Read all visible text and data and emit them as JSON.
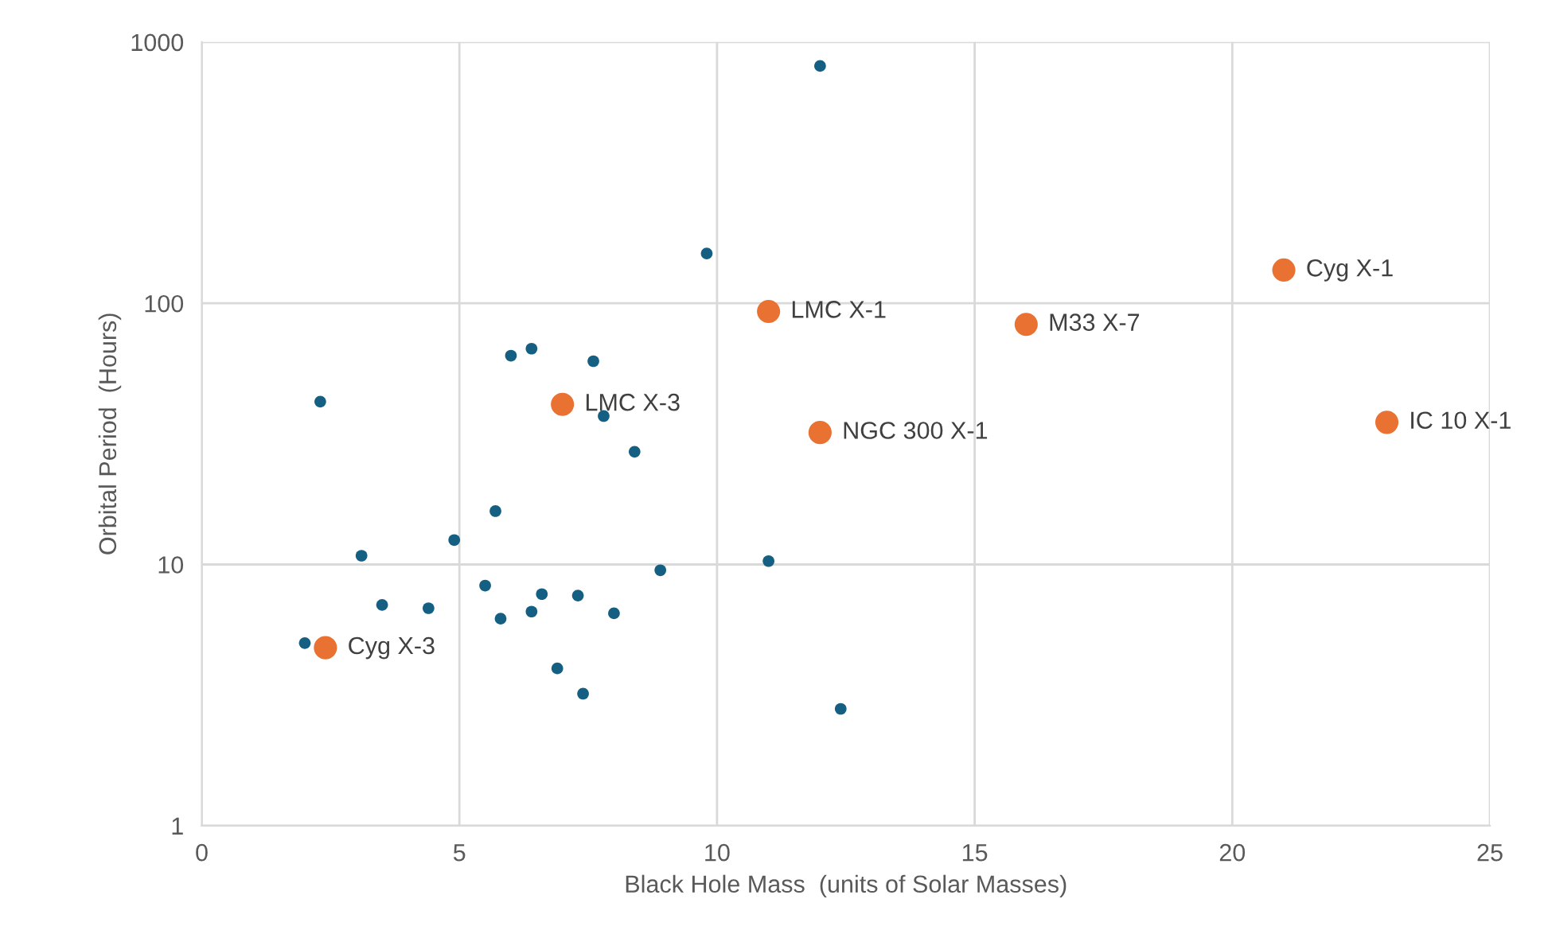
{
  "chart_data": {
    "type": "scatter",
    "xlabel": "Black Hole Mass  (units of Solar Masses)",
    "ylabel": "Orbital Period  (Hours)",
    "log": "y",
    "grid": true,
    "legend": false,
    "marker": "circle",
    "xlim": [
      0,
      25
    ],
    "xticks": [
      0,
      5,
      10,
      15,
      20,
      25
    ],
    "ylim": [
      1,
      1000
    ],
    "yticks": [
      1,
      10,
      100,
      1000
    ],
    "series": [
      {
        "color": "#156082",
        "x": [
          12,
          9.8,
          2.3,
          6.0,
          6.4,
          7.6,
          7.8,
          8.4,
          5.7,
          4.9,
          3.1,
          11.0,
          8.9,
          5.5,
          6.6,
          7.3,
          3.5,
          4.4,
          6.4,
          8.0,
          5.8,
          2.0,
          6.9,
          7.4,
          12.4
        ],
        "values": [
          810,
          155,
          42,
          63,
          67,
          60,
          37,
          27,
          16,
          12.4,
          10.8,
          10.3,
          9.5,
          8.3,
          7.7,
          7.6,
          7.0,
          6.8,
          6.6,
          6.5,
          6.2,
          5.0,
          4.0,
          3.2,
          2.8
        ]
      },
      {
        "color": "#e97132",
        "x": [
          2.4,
          7,
          11,
          12,
          16,
          21,
          23
        ],
        "values": [
          4.8,
          41,
          93,
          32,
          83,
          134,
          35
        ]
      }
    ],
    "annotations": [
      {
        "text": "Cyg X-3",
        "x": 2.4,
        "y": 4.8
      },
      {
        "text": "LMC X-3",
        "x": 7,
        "y": 41
      },
      {
        "text": "LMC X-1",
        "x": 11,
        "y": 93
      },
      {
        "text": "NGC 300 X-1",
        "x": 12,
        "y": 32
      },
      {
        "text": "M33 X-7",
        "x": 16,
        "y": 83
      },
      {
        "text": "Cyg X-1",
        "x": 21,
        "y": 134
      },
      {
        "text": "IC 10 X-1",
        "x": 23,
        "y": 35
      }
    ]
  }
}
